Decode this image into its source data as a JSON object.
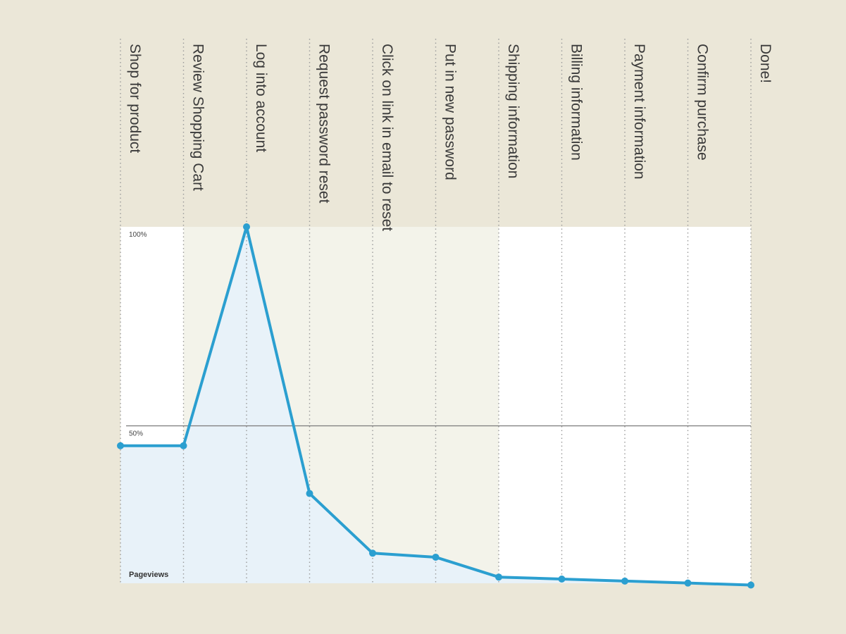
{
  "colors": {
    "page_background": "#ebe7d8",
    "plot_background": "#ffffff",
    "highlight_band": "#f3f3ea",
    "fill_under_line": "#e8f2f9",
    "line": "#2b9fd0",
    "gridline": "#7a7a7a"
  },
  "chart_data": {
    "type": "area",
    "categories": [
      "Shop for product",
      "Review Shopping Cart",
      "Log into account",
      "Request password reset",
      "Click on link in email to reset",
      "Put in new password",
      "Shipping information",
      "Billing information",
      "Payment information",
      "Confirm purchase",
      "Done!"
    ],
    "series": [
      {
        "name": "",
        "values": [
          45,
          45,
          100,
          33,
          18,
          17,
          12,
          11.5,
          11,
          10.5,
          10
        ]
      }
    ],
    "ylabel": "Pageviews",
    "ylim": [
      0,
      100
    ],
    "yticks": [
      {
        "value": 100,
        "label": "100%"
      },
      {
        "value": 50,
        "label": "50%"
      }
    ],
    "highlighted_steps": [
      "Review Shopping Cart",
      "Log into account",
      "Request password reset",
      "Click on link in email to reset",
      "Put in new password"
    ],
    "gridline_at": 50,
    "legend": "none"
  }
}
